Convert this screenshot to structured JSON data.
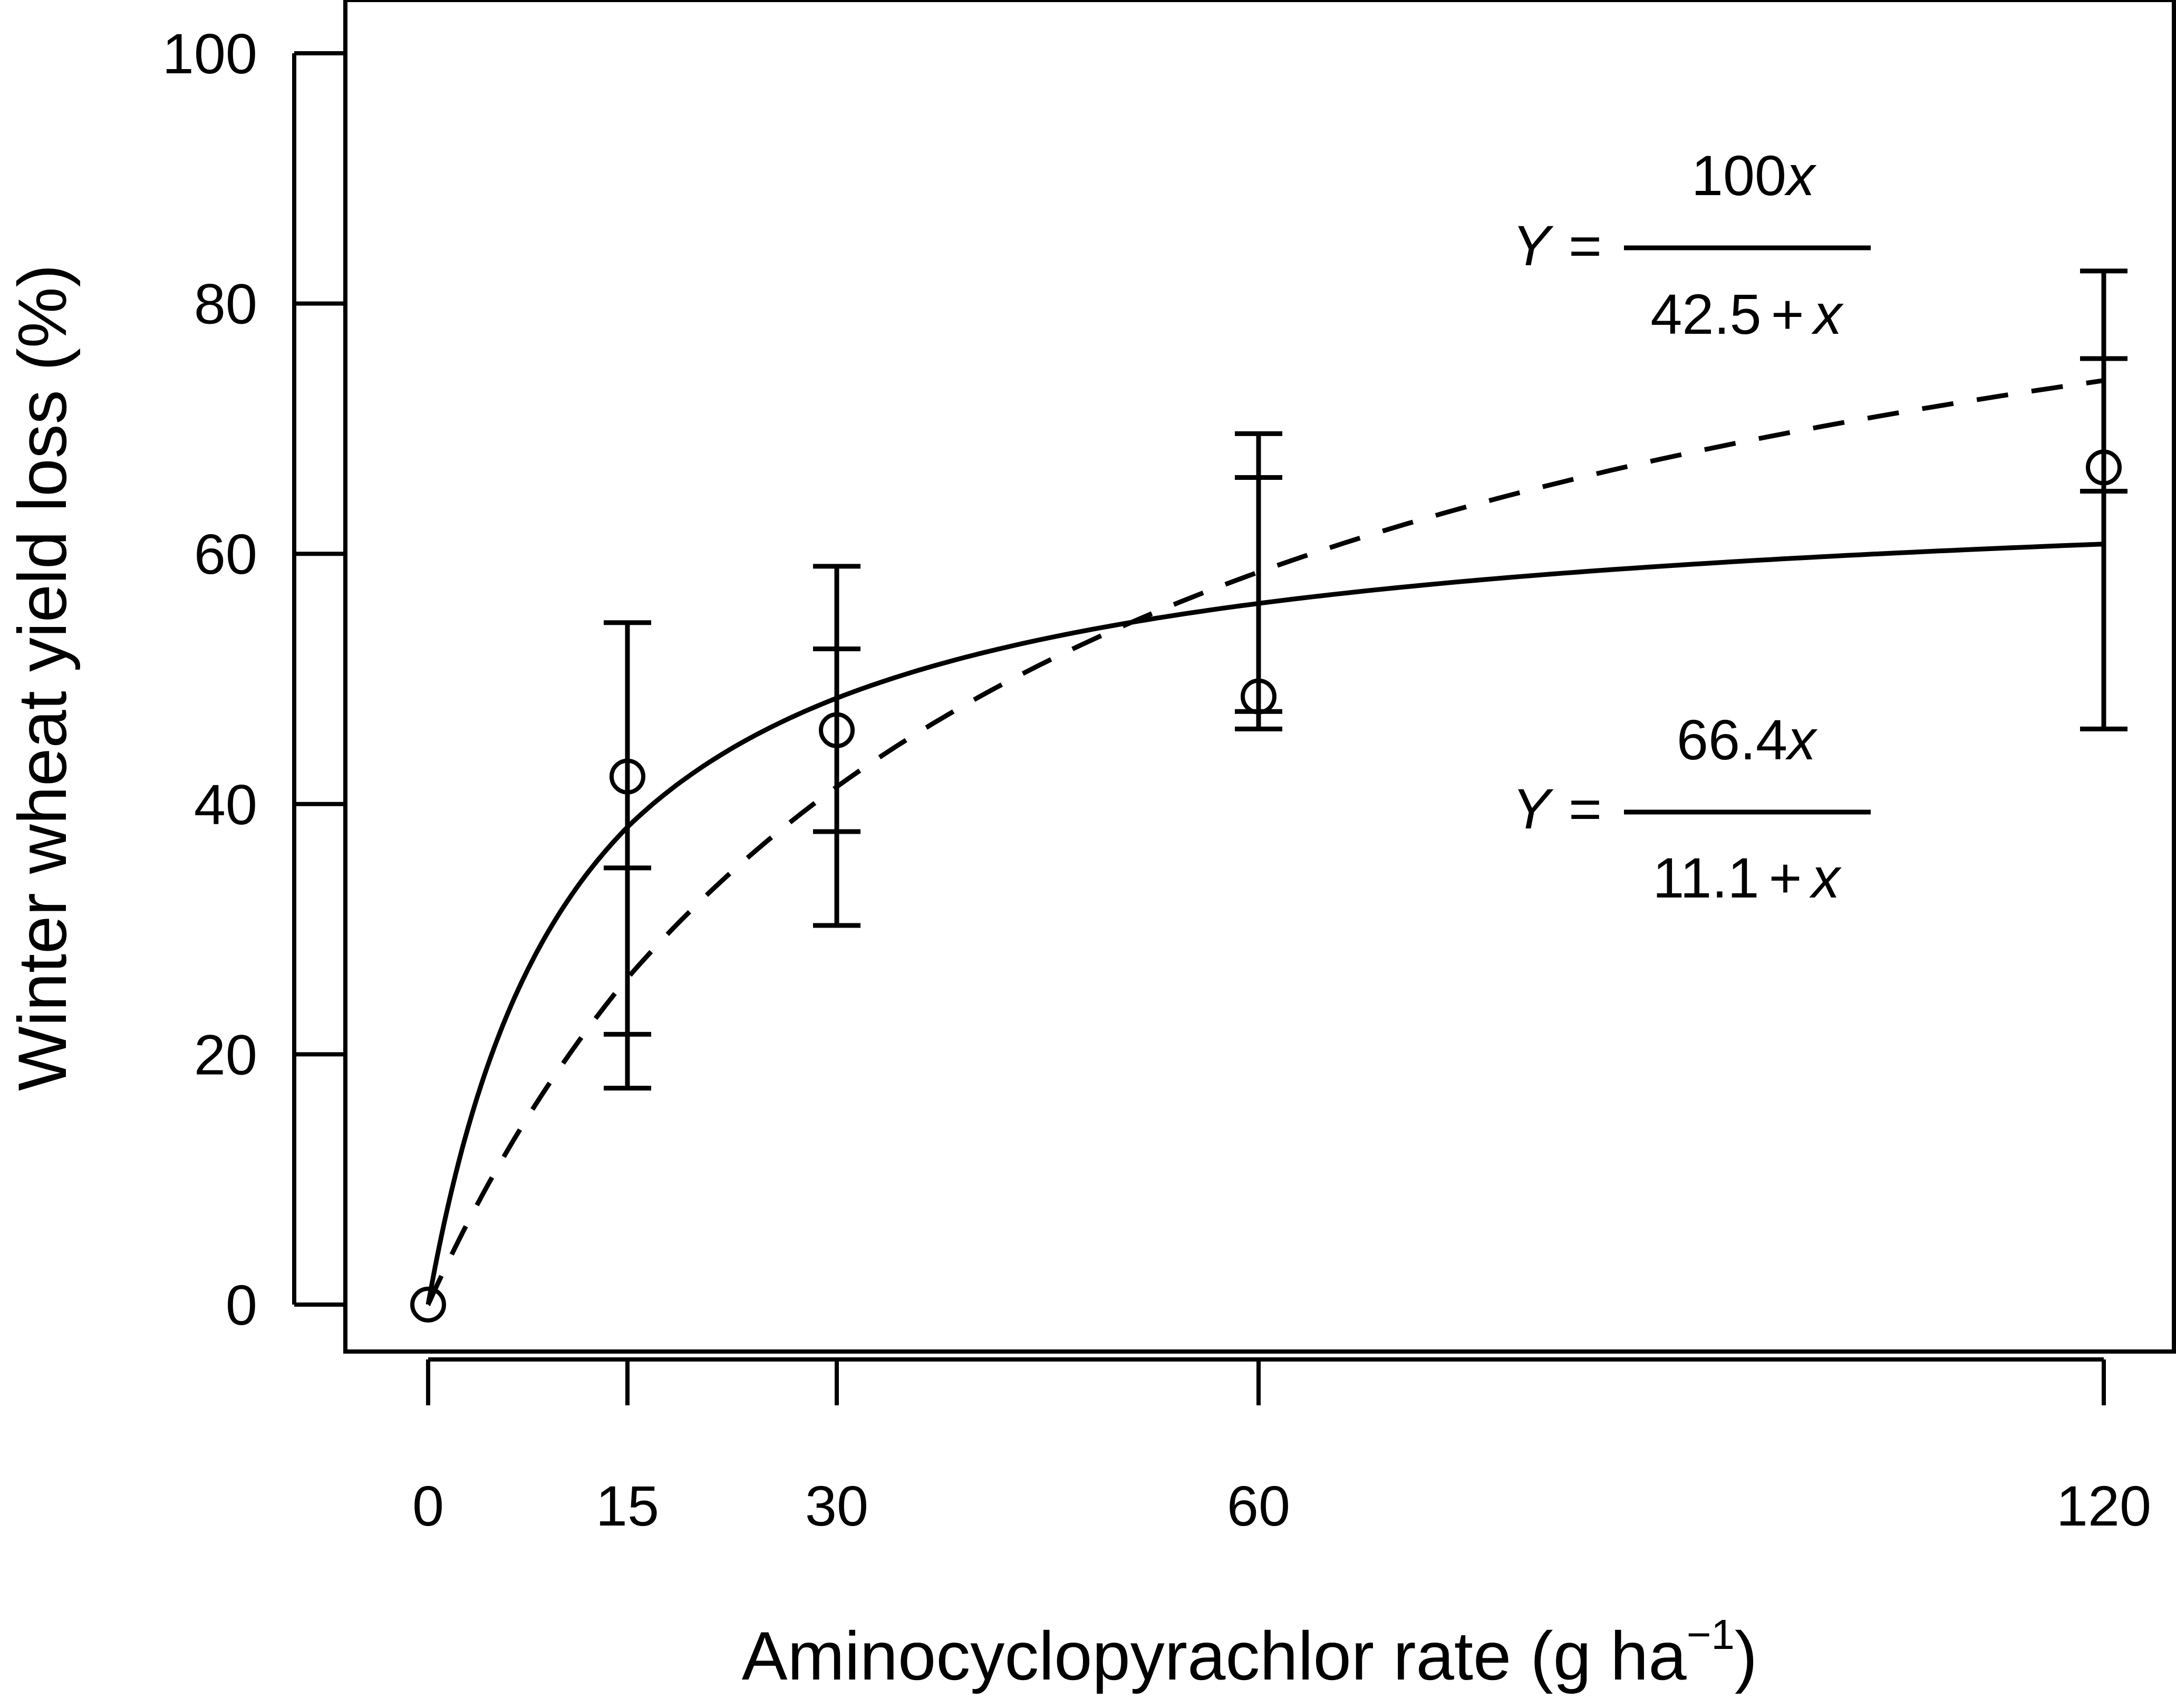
{
  "chart_data": {
    "type": "scatter",
    "xlabel": "Aminocyclopyrachlor rate (g ha",
    "xlabel_superscript": "−1",
    "xlabel_close": ")",
    "ylabel": "Winter wheat yield loss (%)",
    "ylim": [
      0,
      100
    ],
    "xticks": [
      0,
      15,
      30,
      60,
      120
    ],
    "xtick_labels": [
      "0",
      "15",
      "30",
      "60",
      "120"
    ],
    "yticks": [
      0,
      20,
      40,
      60,
      80,
      100
    ],
    "ytick_labels": [
      "0",
      "20",
      "40",
      "60",
      "80",
      "100"
    ],
    "grid": false,
    "points": [
      {
        "x": 0,
        "y": 0
      },
      {
        "x": 15,
        "y": 42.2
      },
      {
        "x": 30,
        "y": 45.9
      },
      {
        "x": 60,
        "y": 48.6
      },
      {
        "x": 120,
        "y": 66.9
      }
    ],
    "error_bars_outer": [
      {
        "x": 15,
        "low": 17.3,
        "high": 54.5
      },
      {
        "x": 30,
        "low": 30.3,
        "high": 59.0
      },
      {
        "x": 60,
        "low": 46.0,
        "high": 69.6
      },
      {
        "x": 120,
        "low": 46.0,
        "high": 82.6
      }
    ],
    "error_bars_inner": [
      {
        "x": 15,
        "low": 21.6,
        "high": 34.9
      },
      {
        "x": 30,
        "low": 37.8,
        "high": 52.4
      },
      {
        "x": 60,
        "low": 47.4,
        "high": 66.1
      },
      {
        "x": 120,
        "low": 65.0,
        "high": 75.6
      }
    ],
    "curves": [
      {
        "style": "dashed",
        "asymptote": 100,
        "half": 42.5
      },
      {
        "style": "solid",
        "asymptote": 66.4,
        "half": 11.1
      }
    ],
    "equations": [
      {
        "lhs": "Y",
        "eq": "=",
        "numerator_num": "100",
        "numerator_var": "x",
        "denominator_num": "42.5",
        "denominator_op": "+",
        "denominator_var": "x"
      },
      {
        "lhs": "Y",
        "eq": "=",
        "numerator_num": "66.4",
        "numerator_var": "x",
        "denominator_num": "11.1",
        "denominator_op": "+",
        "denominator_var": "x"
      }
    ]
  }
}
